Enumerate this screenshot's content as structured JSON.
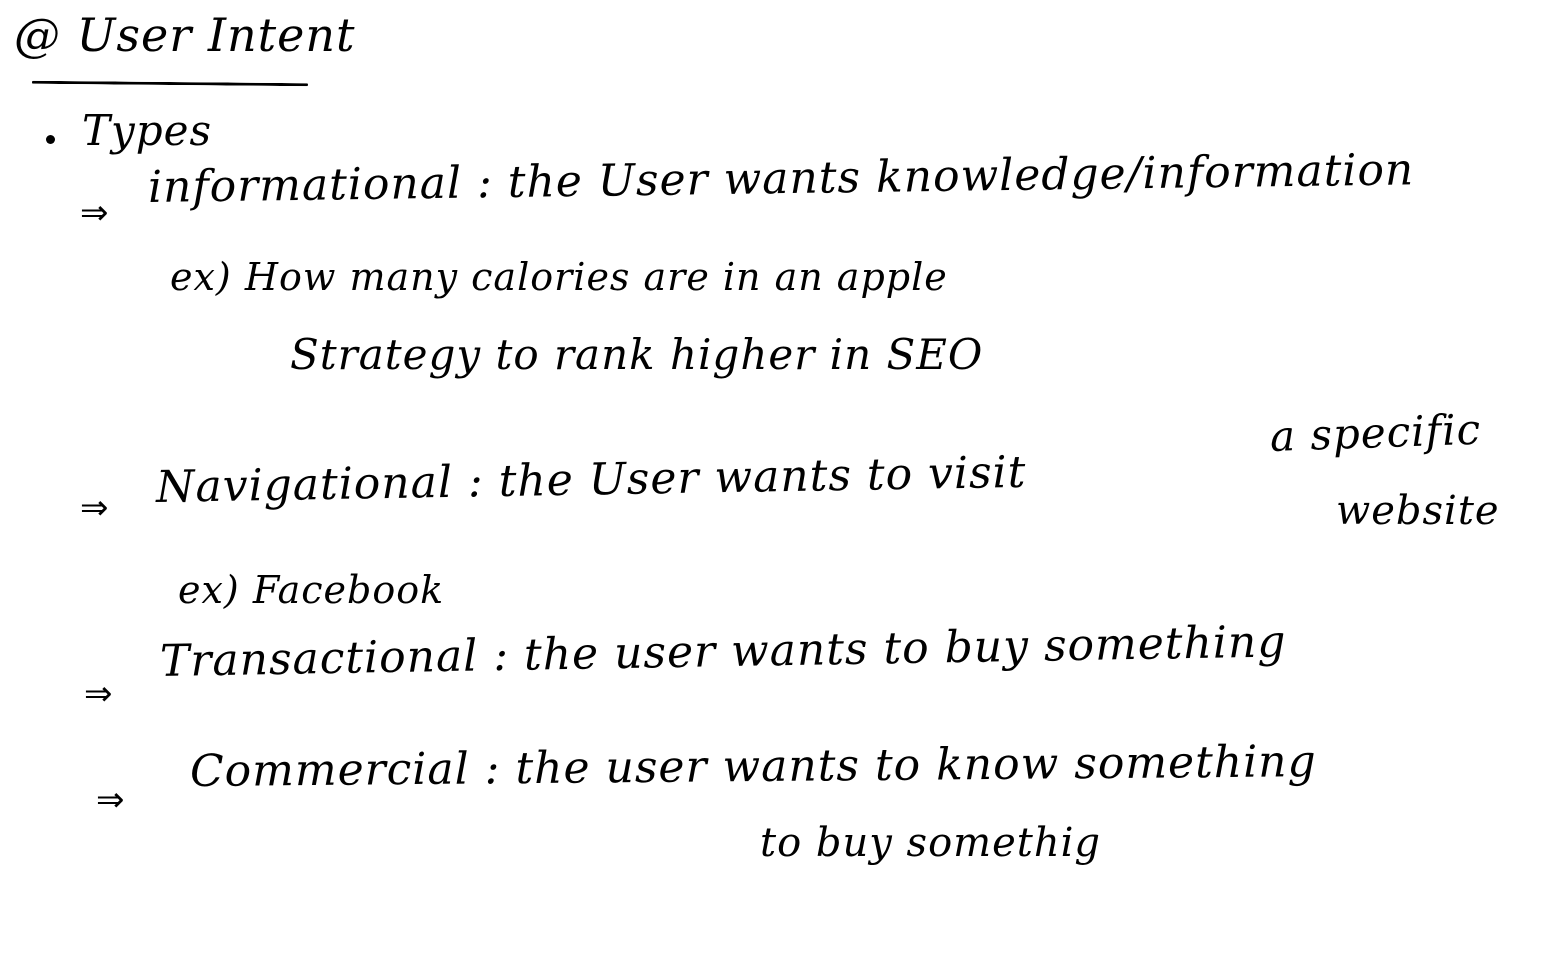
{
  "title": "@ User Intent",
  "types_label": "Types",
  "arrow_glyph": "⇒",
  "lines": {
    "informational": "informational : the User wants knowledge/information",
    "informational_example": "ex)  How many calories are in an apple",
    "informational_example_2": "Strategy to rank higher in SEO",
    "navigational_tail": "a specific",
    "navigational": "Navigational : the User wants to visit",
    "navigational_website": "website",
    "navigational_example": "ex)   Facebook",
    "transactional": "Transactional : the user wants to buy something",
    "commercial": "Commercial :  the user wants to know something",
    "commercial_2": "to buy somethig"
  }
}
